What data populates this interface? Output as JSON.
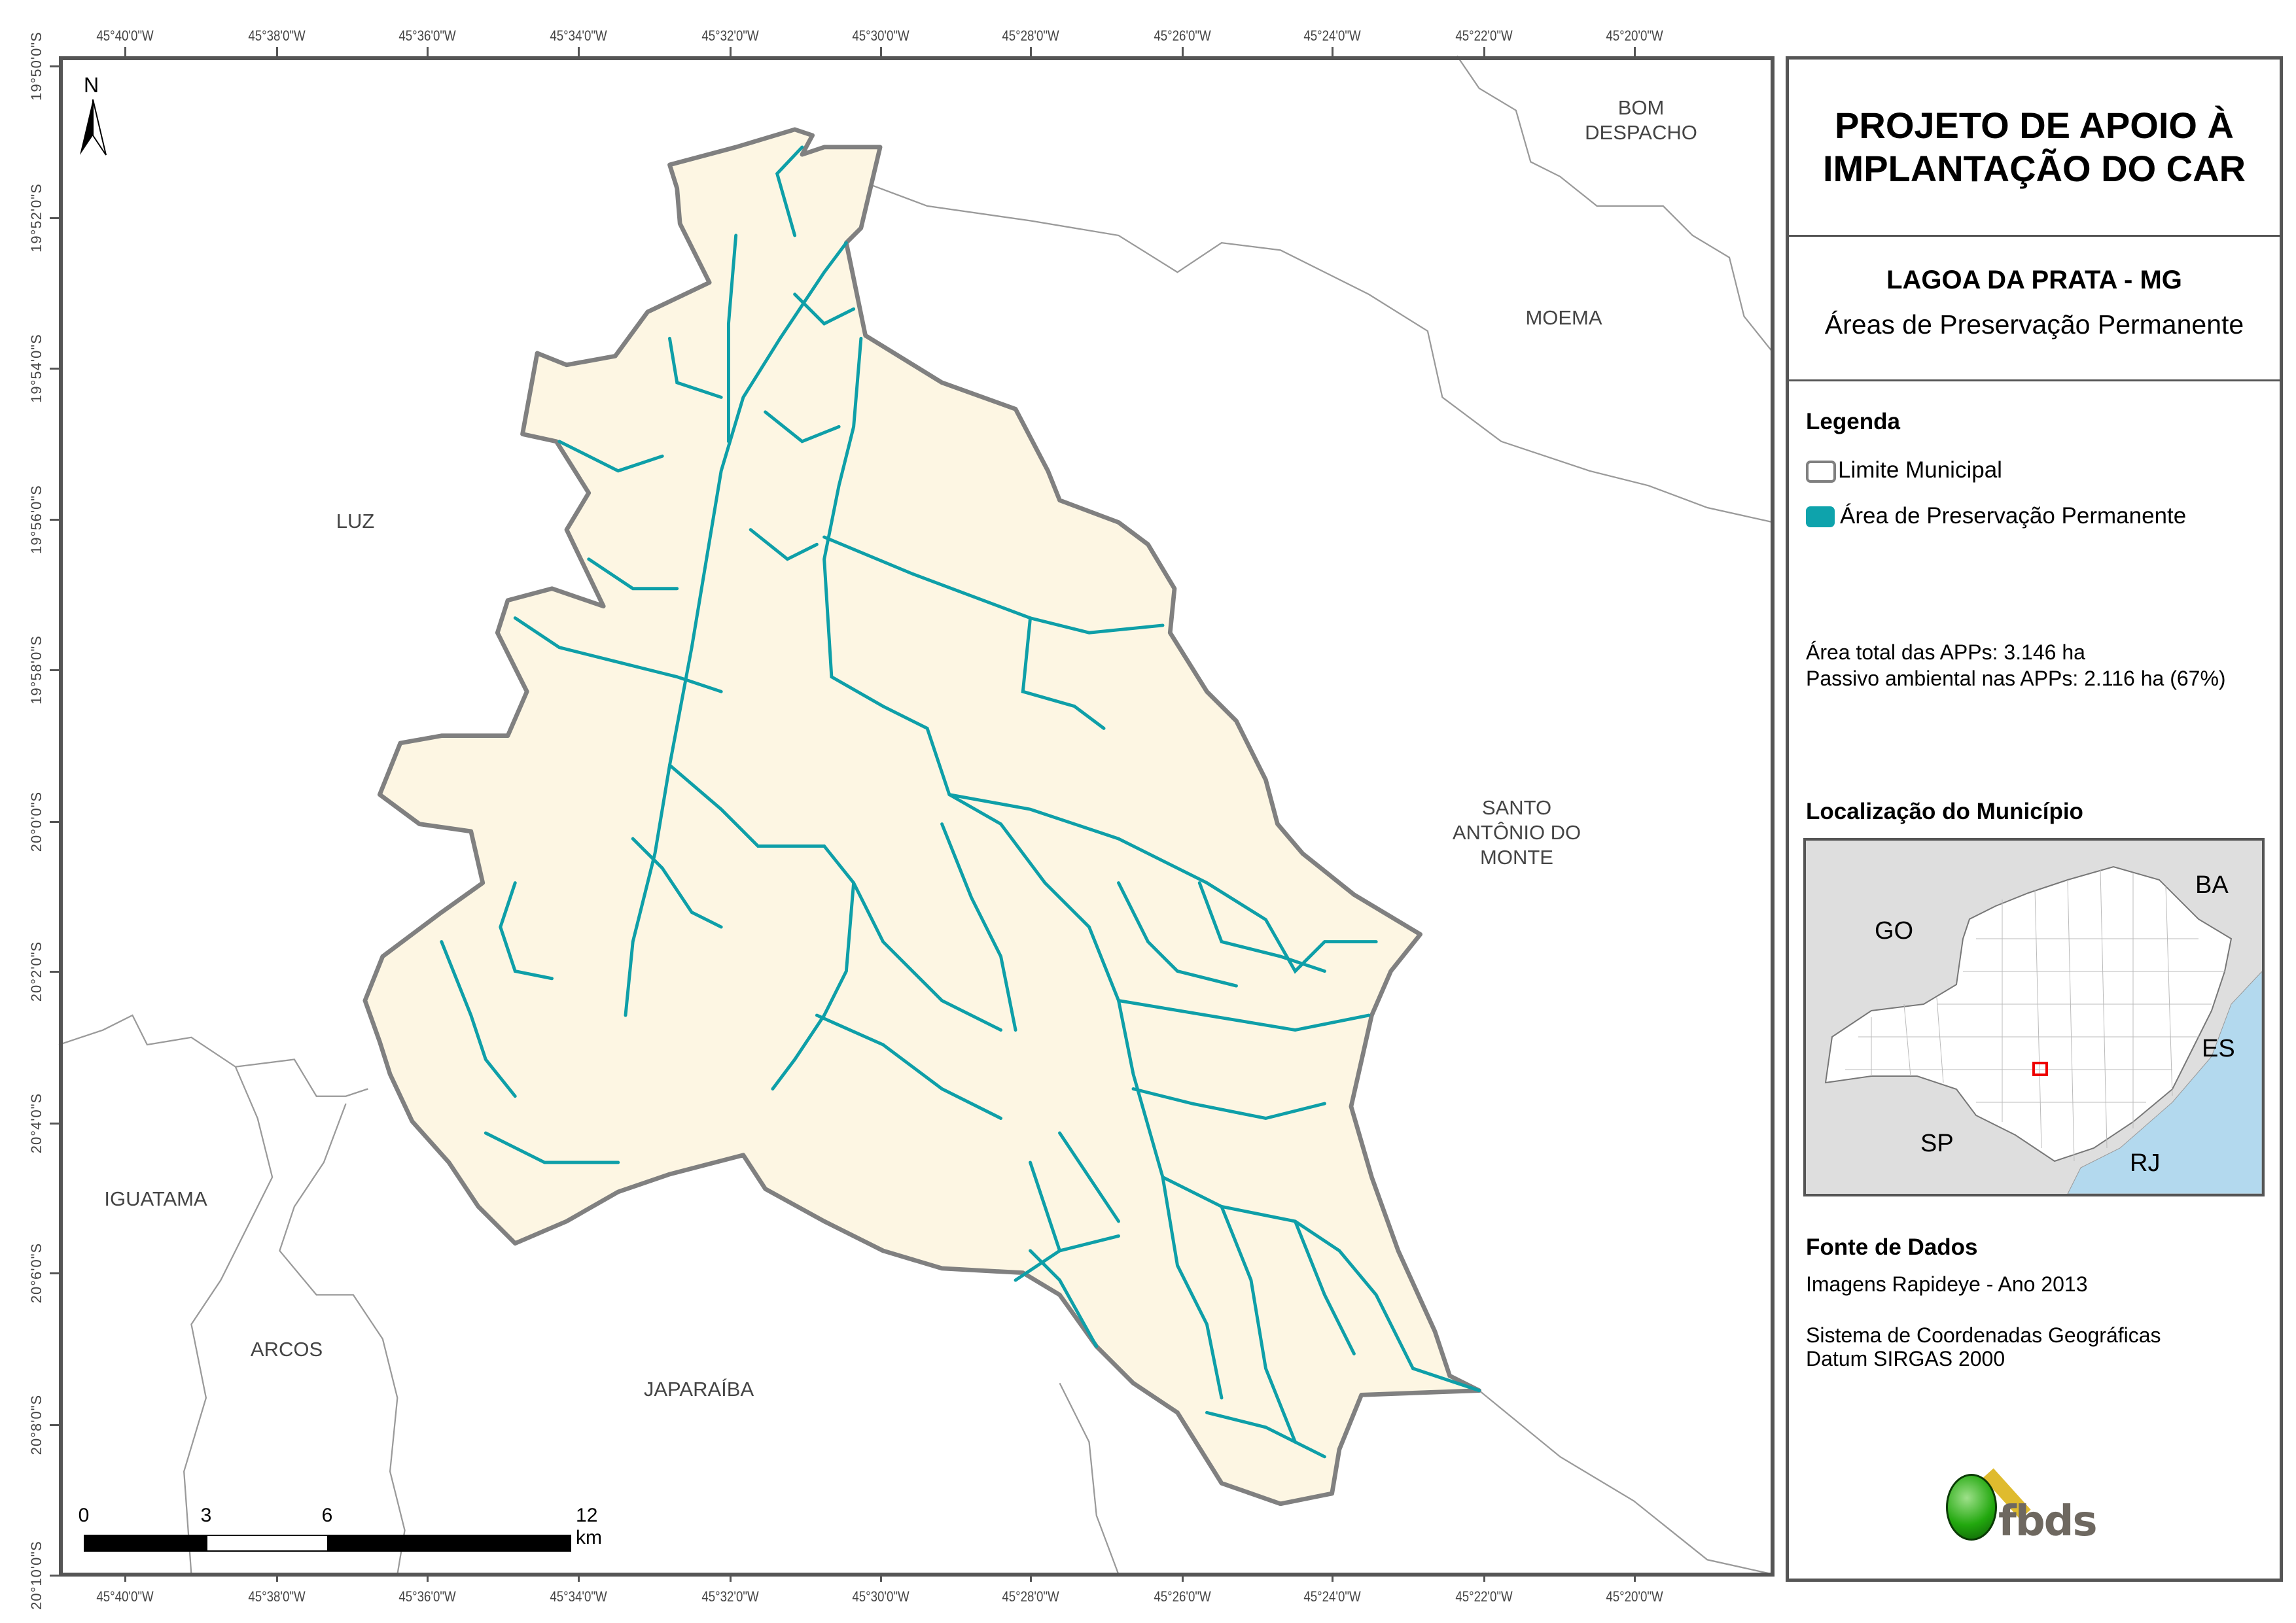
{
  "map": {
    "longitude_labels": [
      "45°40'0\"W",
      "45°38'0\"W",
      "45°36'0\"W",
      "45°34'0\"W",
      "45°32'0\"W",
      "45°30'0\"W",
      "45°28'0\"W",
      "45°26'0\"W",
      "45°24'0\"W",
      "45°22'0\"W",
      "45°20'0\"W"
    ],
    "latitude_labels": [
      "19°50'0\"S",
      "19°52'0\"S",
      "19°54'0\"S",
      "19°56'0\"S",
      "19°58'0\"S",
      "20°0'0\"S",
      "20°2'0\"S",
      "20°4'0\"S",
      "20°6'0\"S",
      "20°8'0\"S",
      "20°10'0\"S"
    ],
    "north_label": "N",
    "places": {
      "bom_despacho": [
        "BOM",
        "DESPACHO"
      ],
      "moema": "MOEMA",
      "luz": "LUZ",
      "santo_antonio": [
        "SANTO",
        "ANTÔNIO DO",
        "MONTE"
      ],
      "iguatama": "IGUATAMA",
      "arcos": "ARCOS",
      "japaraiba": "JAPARAÍBA"
    },
    "scale_bar": {
      "labels": [
        "0",
        "3",
        "6",
        "12 km"
      ]
    },
    "colors": {
      "municipality_fill": "#fdf6e3",
      "boundary": "#808080",
      "app": "#0e9fa8",
      "neighbor": "#9a9a9a"
    }
  },
  "panel": {
    "title": [
      "PROJETO DE APOIO À",
      "IMPLANTAÇÃO DO CAR"
    ],
    "municipality": "LAGOA DA PRATA - MG",
    "subtitle": "Áreas de Preservação Permanente",
    "legend": {
      "heading": "Legenda",
      "items": [
        {
          "label": "Limite Municipal",
          "color": "#ffffff"
        },
        {
          "label": "Área de Preservação Permanente",
          "color": "#0ea3ac"
        }
      ]
    },
    "stats": [
      "Área total das APPs: 3.146 ha",
      "Passivo ambiental nas APPs: 2.116 ha (67%)"
    ],
    "location": {
      "heading": "Localização do Município",
      "states": [
        "GO",
        "BA",
        "ES",
        "SP",
        "RJ"
      ]
    },
    "source": {
      "heading": "Fonte de Dados",
      "lines": [
        "Imagens Rapideye - Ano 2013",
        "Sistema de Coordenadas Geográficas",
        "Datum SIRGAS 2000"
      ]
    },
    "logo_text": "fbds"
  }
}
